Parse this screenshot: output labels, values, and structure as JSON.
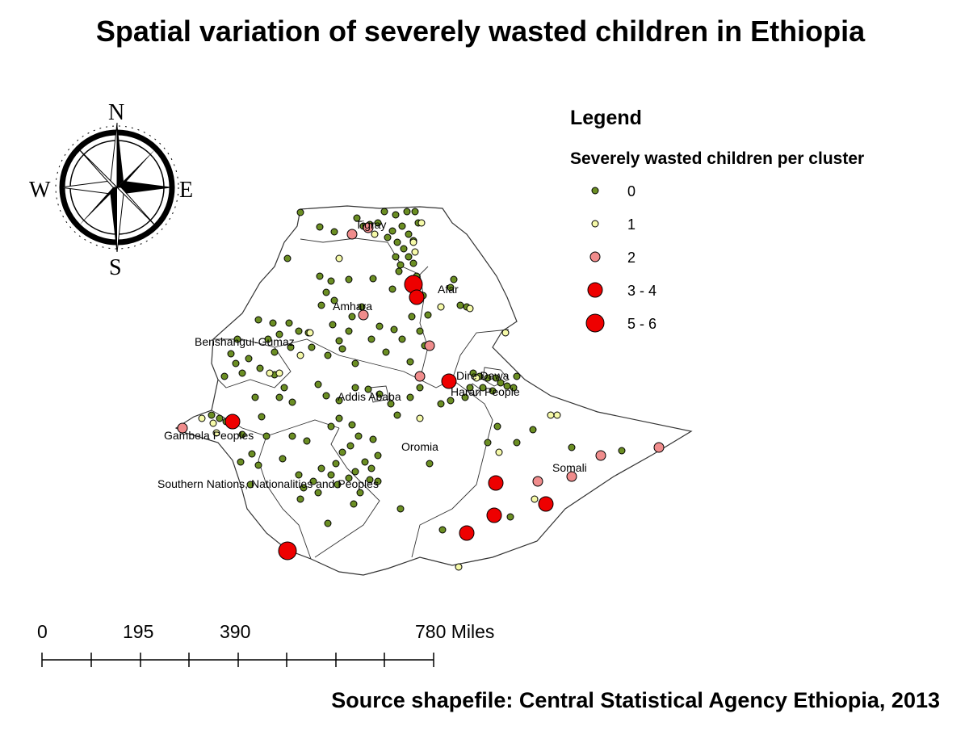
{
  "title": "Spatial variation of severely wasted children in Ethiopia",
  "source": "Source shapefile: Central Statistical Agency Ethiopia, 2013",
  "compass": {
    "n": "N",
    "s": "S",
    "e": "E",
    "w": "W"
  },
  "legend": {
    "title": "Legend",
    "subtitle": "Severely wasted children per cluster",
    "items": [
      {
        "label": "0",
        "color": "#6b8e23"
      },
      {
        "label": "1",
        "color": "#f5f9a8"
      },
      {
        "label": "2",
        "color": "#f08c8c"
      },
      {
        "label": "3 - 4",
        "color": "#ee0000"
      },
      {
        "label": "5 - 6",
        "color": "#ee0000"
      }
    ]
  },
  "regions": {
    "tigray": "Tigray",
    "afar": "Afar",
    "amhara": "Amhara",
    "benishangul": "Benshangul-Gumaz",
    "dire_dawa": "Dire Dawa",
    "harari": "Harari People",
    "addis": "Addis Ababa",
    "gambela": "Gambela Peoples",
    "oromia": "Oromia",
    "somali": "Somali",
    "snnp": "Southern Nations, Nationalities and Peoples"
  },
  "scale_bar": {
    "labels": [
      "0",
      "195",
      "390",
      "780 Miles"
    ]
  },
  "colors": {
    "zero": "#6b8e23",
    "one": "#f5f9a8",
    "two": "#f08c8c",
    "high": "#ee0000"
  }
}
